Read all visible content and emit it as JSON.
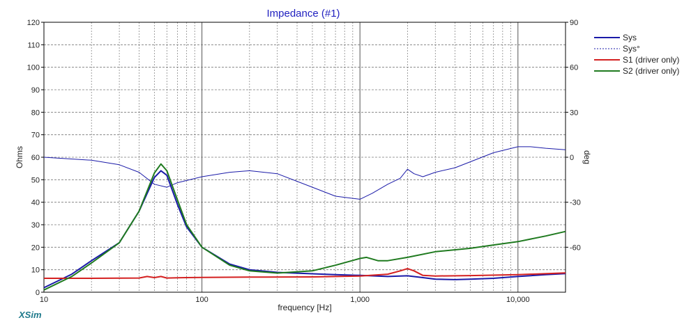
{
  "window": {
    "brand": "XSim"
  },
  "chart_data": {
    "type": "line",
    "title": "Impedance (#1)",
    "xlabel": "frequency [Hz]",
    "ylabel_left": "Ohms",
    "ylabel_right": "deg",
    "x_scale": "log",
    "xlim": [
      10,
      20000
    ],
    "ylim_left": [
      0,
      120
    ],
    "ylim_right": [
      -90,
      90
    ],
    "grid": true,
    "legend_position": "right",
    "x_tick_labels": [
      "10",
      "100",
      "1,000",
      "10,000"
    ],
    "y_left_ticks": [
      "0",
      "10",
      "20",
      "30",
      "40",
      "50",
      "60",
      "70",
      "80",
      "90",
      "100",
      "110",
      "120"
    ],
    "y_right_ticks": [
      "90",
      "60",
      "30",
      "0",
      "-30",
      "-60"
    ],
    "series": [
      {
        "name": "Sys",
        "color": "#1a1aa8",
        "style": "solid",
        "axis": "left",
        "x": [
          10,
          15,
          20,
          30,
          40,
          50,
          55,
          60,
          70,
          80,
          100,
          150,
          200,
          300,
          500,
          700,
          1000,
          1500,
          2000,
          2500,
          3000,
          4000,
          5000,
          7000,
          10000,
          15000,
          20000
        ],
        "y": [
          2,
          8,
          14,
          22,
          36,
          51,
          54,
          52,
          39,
          29,
          20,
          12.5,
          10,
          8.8,
          8.2,
          7.8,
          7.5,
          7.0,
          7.3,
          6.5,
          5.8,
          5.6,
          5.8,
          6.2,
          7.0,
          7.8,
          8.3
        ]
      },
      {
        "name": "Sys°",
        "color": "#1a1aa8",
        "style": "dotted",
        "axis": "right",
        "x": [
          10,
          20,
          30,
          40,
          50,
          60,
          70,
          100,
          150,
          200,
          300,
          500,
          700,
          1000,
          1200,
          1500,
          1800,
          2000,
          2200,
          2500,
          3000,
          4000,
          5000,
          7000,
          10000,
          12000,
          15000,
          20000
        ],
        "y": [
          0,
          -2,
          -5,
          -10,
          -18,
          -20,
          -17,
          -13,
          -10,
          -9,
          -11,
          -20,
          -26,
          -28,
          -24,
          -18,
          -14,
          -8,
          -11,
          -13,
          -10,
          -7,
          -3,
          3,
          7,
          7,
          6,
          5
        ]
      },
      {
        "name": "S1 (driver only)",
        "color": "#d42020",
        "style": "solid",
        "axis": "left",
        "x": [
          10,
          20,
          40,
          45,
          50,
          55,
          60,
          80,
          100,
          200,
          500,
          1000,
          1500,
          1800,
          2000,
          2200,
          2500,
          3000,
          5000,
          10000,
          20000
        ],
        "y": [
          6.2,
          6.2,
          6.3,
          7.0,
          6.5,
          7.0,
          6.3,
          6.5,
          6.6,
          6.7,
          6.8,
          7.2,
          8.0,
          9.5,
          10.5,
          9.5,
          7.5,
          7.2,
          7.4,
          7.8,
          8.6
        ]
      },
      {
        "name": "S2 (driver only)",
        "color": "#1f7a1f",
        "style": "solid",
        "axis": "left",
        "x": [
          10,
          15,
          20,
          30,
          40,
          50,
          55,
          60,
          70,
          80,
          100,
          150,
          200,
          300,
          500,
          700,
          1000,
          1100,
          1300,
          1500,
          2000,
          3000,
          5000,
          7000,
          10000,
          15000,
          20000
        ],
        "y": [
          1,
          7,
          13,
          22,
          36,
          53,
          57,
          54,
          41,
          30,
          20,
          12,
          9.5,
          8.5,
          9.5,
          12,
          15,
          15.5,
          14,
          14,
          15.5,
          18,
          19.5,
          21,
          22.5,
          25,
          27
        ]
      }
    ]
  }
}
